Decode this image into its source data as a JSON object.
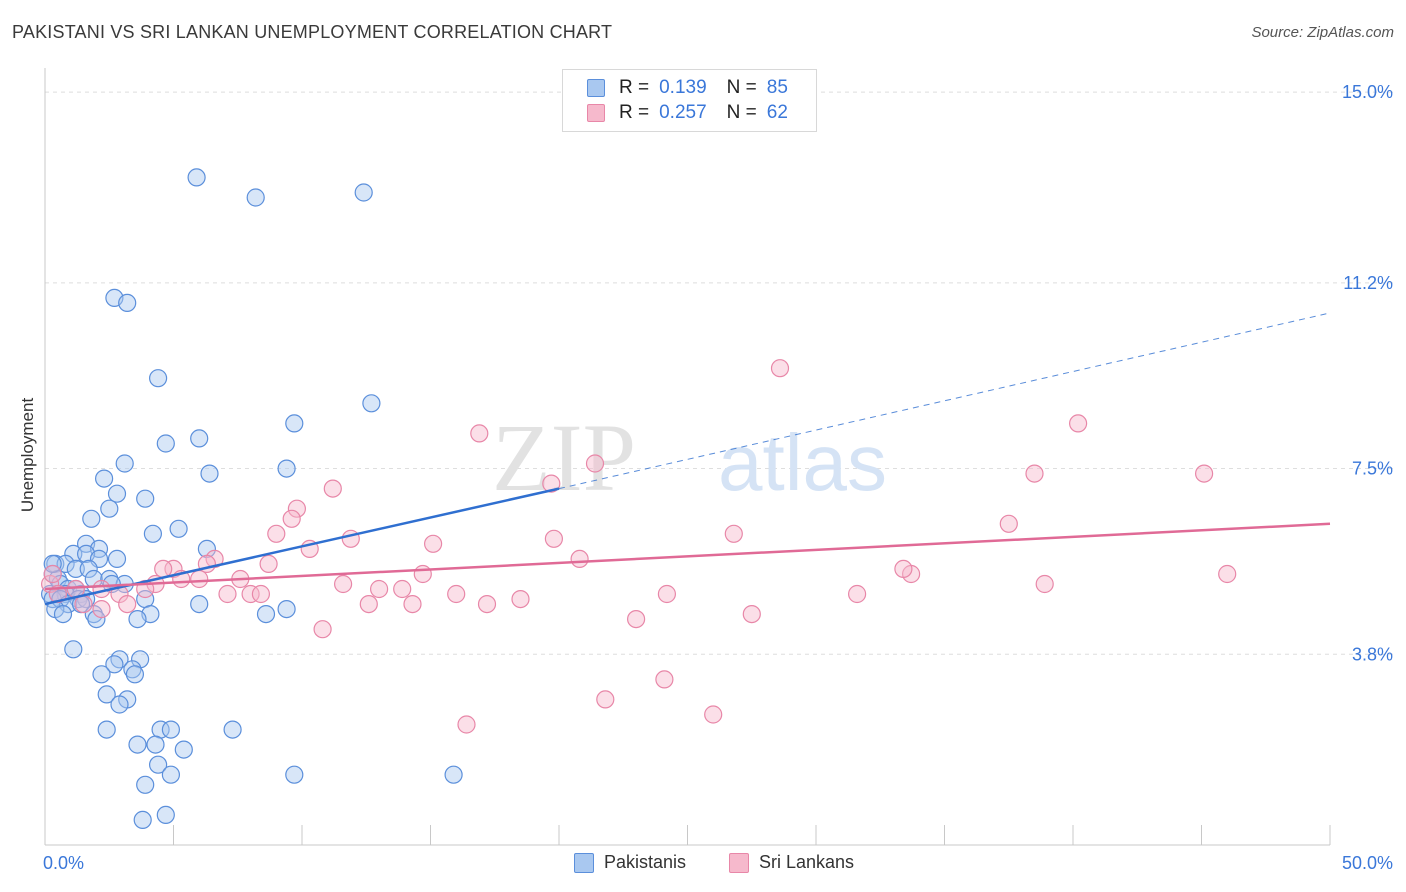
{
  "title": "PAKISTANI VS SRI LANKAN UNEMPLOYMENT CORRELATION CHART",
  "source": "Source: ZipAtlas.com",
  "watermark": {
    "part1": "ZIP",
    "part2": "atlas"
  },
  "colors": {
    "pakistani_fill": "#a9c8f0",
    "pakistani_stroke": "#5b8fdb",
    "pakistani_line": "#2f6fd0",
    "srilankan_fill": "#f6b9cc",
    "srilankan_stroke": "#e887a8",
    "srilankan_line": "#e06a96",
    "axis_value": "#3a77d9"
  },
  "legend": {
    "rows": [
      {
        "r_label": "R =",
        "r_value": "0.139",
        "n_label": "N =",
        "n_value": "85"
      },
      {
        "r_label": "R =",
        "r_value": "0.257",
        "n_label": "N =",
        "n_value": "62"
      }
    ]
  },
  "bottom_legend": {
    "items": [
      {
        "label": "Pakistanis"
      },
      {
        "label": "Sri Lankans"
      }
    ]
  },
  "chart_data": {
    "type": "scatter",
    "title": "PAKISTANI VS SRI LANKAN UNEMPLOYMENT CORRELATION CHART",
    "xlabel": "",
    "ylabel": "Unemployment",
    "xlim": [
      0,
      50
    ],
    "ylim": [
      0,
      15.6
    ],
    "x_tick_labels": [
      "0.0%",
      "50.0%"
    ],
    "y_ticks": [
      3.8,
      7.5,
      11.2,
      15.0
    ],
    "y_tick_labels": [
      "3.8%",
      "7.5%",
      "11.2%",
      "15.0%"
    ],
    "grid": true,
    "legend_position": "top-center",
    "series": [
      {
        "name": "Pakistanis",
        "r": 0.139,
        "n": 85,
        "trend": {
          "x": [
            0,
            20
          ],
          "y": [
            4.8,
            7.1
          ],
          "dashed_extension": {
            "x": [
              20,
              50
            ],
            "y": [
              7.1,
              10.6
            ]
          }
        },
        "points": [
          [
            5.9,
            13.3
          ],
          [
            8.2,
            12.9
          ],
          [
            12.4,
            13.0
          ],
          [
            2.7,
            10.9
          ],
          [
            3.2,
            10.8
          ],
          [
            4.4,
            9.3
          ],
          [
            12.7,
            8.8
          ],
          [
            9.7,
            8.4
          ],
          [
            4.7,
            8.0
          ],
          [
            6.0,
            8.1
          ],
          [
            3.1,
            7.6
          ],
          [
            6.4,
            7.4
          ],
          [
            9.4,
            7.5
          ],
          [
            2.3,
            7.3
          ],
          [
            2.8,
            7.0
          ],
          [
            3.9,
            6.9
          ],
          [
            2.5,
            6.7
          ],
          [
            1.8,
            6.5
          ],
          [
            4.2,
            6.2
          ],
          [
            5.2,
            6.3
          ],
          [
            6.3,
            5.9
          ],
          [
            1.6,
            6.0
          ],
          [
            2.1,
            5.9
          ],
          [
            1.1,
            5.8
          ],
          [
            1.6,
            5.8
          ],
          [
            2.1,
            5.7
          ],
          [
            2.8,
            5.7
          ],
          [
            0.4,
            5.6
          ],
          [
            0.8,
            5.6
          ],
          [
            1.2,
            5.5
          ],
          [
            1.7,
            5.5
          ],
          [
            0.3,
            5.4
          ],
          [
            0.5,
            5.3
          ],
          [
            1.9,
            5.3
          ],
          [
            2.5,
            5.3
          ],
          [
            3.1,
            5.2
          ],
          [
            0.6,
            5.2
          ],
          [
            0.9,
            5.1
          ],
          [
            1.2,
            5.1
          ],
          [
            1.4,
            5.0
          ],
          [
            0.2,
            5.0
          ],
          [
            0.5,
            5.0
          ],
          [
            0.8,
            5.0
          ],
          [
            1.3,
            4.9
          ],
          [
            1.6,
            4.9
          ],
          [
            0.3,
            4.9
          ],
          [
            0.6,
            4.9
          ],
          [
            0.9,
            4.8
          ],
          [
            1.4,
            4.8
          ],
          [
            0.4,
            4.7
          ],
          [
            0.7,
            4.6
          ],
          [
            1.9,
            4.6
          ],
          [
            2.0,
            4.5
          ],
          [
            3.9,
            4.9
          ],
          [
            4.1,
            4.6
          ],
          [
            3.6,
            4.5
          ],
          [
            8.6,
            4.6
          ],
          [
            9.4,
            4.7
          ],
          [
            6.0,
            4.8
          ],
          [
            1.1,
            3.9
          ],
          [
            3.7,
            3.7
          ],
          [
            2.9,
            3.7
          ],
          [
            3.4,
            3.5
          ],
          [
            2.7,
            3.6
          ],
          [
            3.5,
            3.4
          ],
          [
            2.2,
            3.4
          ],
          [
            2.4,
            3.0
          ],
          [
            3.2,
            2.9
          ],
          [
            2.9,
            2.8
          ],
          [
            2.4,
            2.3
          ],
          [
            4.5,
            2.3
          ],
          [
            4.9,
            2.3
          ],
          [
            7.3,
            2.3
          ],
          [
            3.6,
            2.0
          ],
          [
            4.3,
            2.0
          ],
          [
            5.4,
            1.9
          ],
          [
            4.4,
            1.6
          ],
          [
            4.9,
            1.4
          ],
          [
            9.7,
            1.4
          ],
          [
            15.9,
            1.4
          ],
          [
            3.9,
            1.2
          ],
          [
            3.8,
            0.5
          ],
          [
            4.7,
            0.6
          ],
          [
            0.3,
            5.6
          ],
          [
            2.6,
            5.2
          ]
        ]
      },
      {
        "name": "Sri Lankans",
        "r": 0.257,
        "n": 62,
        "trend": {
          "x": [
            0,
            50
          ],
          "y": [
            5.1,
            6.4
          ]
        },
        "points": [
          [
            28.6,
            9.5
          ],
          [
            40.2,
            8.4
          ],
          [
            16.9,
            8.2
          ],
          [
            21.4,
            7.6
          ],
          [
            38.5,
            7.4
          ],
          [
            45.1,
            7.4
          ],
          [
            19.7,
            7.2
          ],
          [
            11.2,
            7.1
          ],
          [
            9.8,
            6.7
          ],
          [
            9.6,
            6.5
          ],
          [
            37.5,
            6.4
          ],
          [
            9.0,
            6.2
          ],
          [
            11.9,
            6.1
          ],
          [
            19.8,
            6.1
          ],
          [
            26.8,
            6.2
          ],
          [
            15.1,
            6.0
          ],
          [
            10.3,
            5.9
          ],
          [
            6.6,
            5.7
          ],
          [
            20.8,
            5.7
          ],
          [
            5.0,
            5.5
          ],
          [
            4.6,
            5.5
          ],
          [
            6.3,
            5.6
          ],
          [
            8.7,
            5.6
          ],
          [
            14.7,
            5.4
          ],
          [
            33.7,
            5.4
          ],
          [
            33.4,
            5.5
          ],
          [
            46.0,
            5.4
          ],
          [
            5.3,
            5.3
          ],
          [
            6.0,
            5.3
          ],
          [
            7.6,
            5.3
          ],
          [
            4.3,
            5.2
          ],
          [
            11.6,
            5.2
          ],
          [
            13.0,
            5.1
          ],
          [
            13.9,
            5.1
          ],
          [
            38.9,
            5.2
          ],
          [
            3.9,
            5.1
          ],
          [
            2.9,
            5.0
          ],
          [
            7.1,
            5.0
          ],
          [
            8.0,
            5.0
          ],
          [
            8.4,
            5.0
          ],
          [
            16.0,
            5.0
          ],
          [
            18.5,
            4.9
          ],
          [
            17.2,
            4.8
          ],
          [
            24.2,
            5.0
          ],
          [
            12.6,
            4.8
          ],
          [
            14.3,
            4.8
          ],
          [
            3.2,
            4.8
          ],
          [
            31.6,
            5.0
          ],
          [
            0.2,
            5.2
          ],
          [
            0.5,
            5.0
          ],
          [
            1.2,
            5.1
          ],
          [
            2.2,
            5.1
          ],
          [
            1.5,
            4.8
          ],
          [
            2.2,
            4.7
          ],
          [
            10.8,
            4.3
          ],
          [
            23.0,
            4.5
          ],
          [
            27.5,
            4.6
          ],
          [
            24.1,
            3.3
          ],
          [
            21.8,
            2.9
          ],
          [
            26.0,
            2.6
          ],
          [
            16.4,
            2.4
          ],
          [
            0.3,
            5.4
          ]
        ]
      }
    ]
  }
}
